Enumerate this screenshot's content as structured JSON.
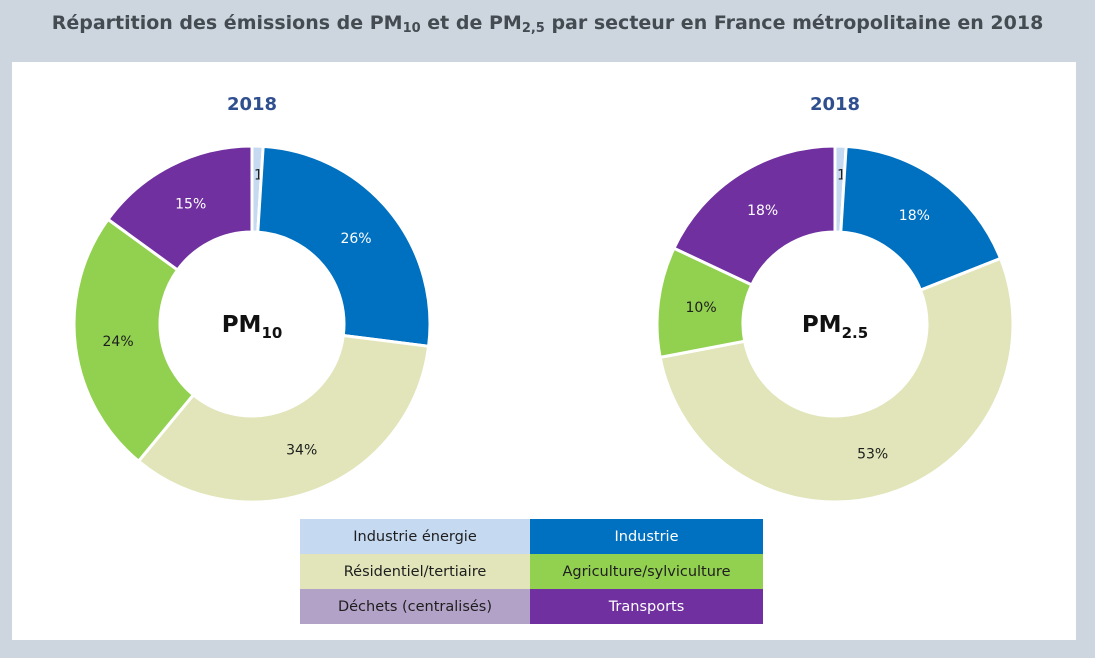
{
  "title": {
    "prefix": "Répartition des émissions de PM",
    "pm10_sub": "10",
    "middle": " et de PM",
    "pm25_sub": "2,5",
    "suffix": " par secteur en France métropolitaine en 2018"
  },
  "colors": {
    "industrie_energie": "#c5d9f1",
    "industrie": "#0070c0",
    "residentiel_tertiaire": "#e1e5b9",
    "agriculture_sylviculture": "#92d050",
    "dechets": "#b3a2c7",
    "transports": "#7030a0",
    "year_label": "#2f4f8f"
  },
  "legend": [
    [
      {
        "label": "Industrie énergie",
        "color": "#c5d9f1",
        "dark": false
      },
      {
        "label": "Industrie",
        "color": "#0070c0",
        "dark": true
      }
    ],
    [
      {
        "label": "Résidentiel/tertiaire",
        "color": "#e1e5b9",
        "dark": false
      },
      {
        "label": "Agriculture/sylviculture",
        "color": "#92d050",
        "dark": false
      }
    ],
    [
      {
        "label": "Déchets (centralisés)",
        "color": "#b3a2c7",
        "dark": false
      },
      {
        "label": "Transports",
        "color": "#7030a0",
        "dark": true
      }
    ]
  ],
  "chart_data": [
    {
      "type": "pie",
      "donut": true,
      "year_label": "2018",
      "center_label": "PM",
      "center_sub": "10",
      "categories": [
        "Industrie énergie",
        "Industrie",
        "Résidentiel/tertiaire",
        "Agriculture/sylviculture",
        "Déchets (centralisés)",
        "Transports"
      ],
      "values": [
        1,
        26,
        34,
        24,
        0,
        15
      ],
      "labels": [
        "1%",
        "26%",
        "34%",
        "24%",
        "",
        "15%"
      ],
      "colors": [
        "#c5d9f1",
        "#0070c0",
        "#e1e5b9",
        "#92d050",
        "#b3a2c7",
        "#7030a0"
      ]
    },
    {
      "type": "pie",
      "donut": true,
      "year_label": "2018",
      "center_label": "PM",
      "center_sub": "2.5",
      "categories": [
        "Industrie énergie",
        "Industrie",
        "Résidentiel/tertiaire",
        "Agriculture/sylviculture",
        "Déchets (centralisés)",
        "Transports"
      ],
      "values": [
        1,
        18,
        53,
        10,
        0,
        18
      ],
      "labels": [
        "1%",
        "18%",
        "53%",
        "10%",
        "",
        "18%"
      ],
      "colors": [
        "#c5d9f1",
        "#0070c0",
        "#e1e5b9",
        "#92d050",
        "#b3a2c7",
        "#7030a0"
      ]
    }
  ]
}
